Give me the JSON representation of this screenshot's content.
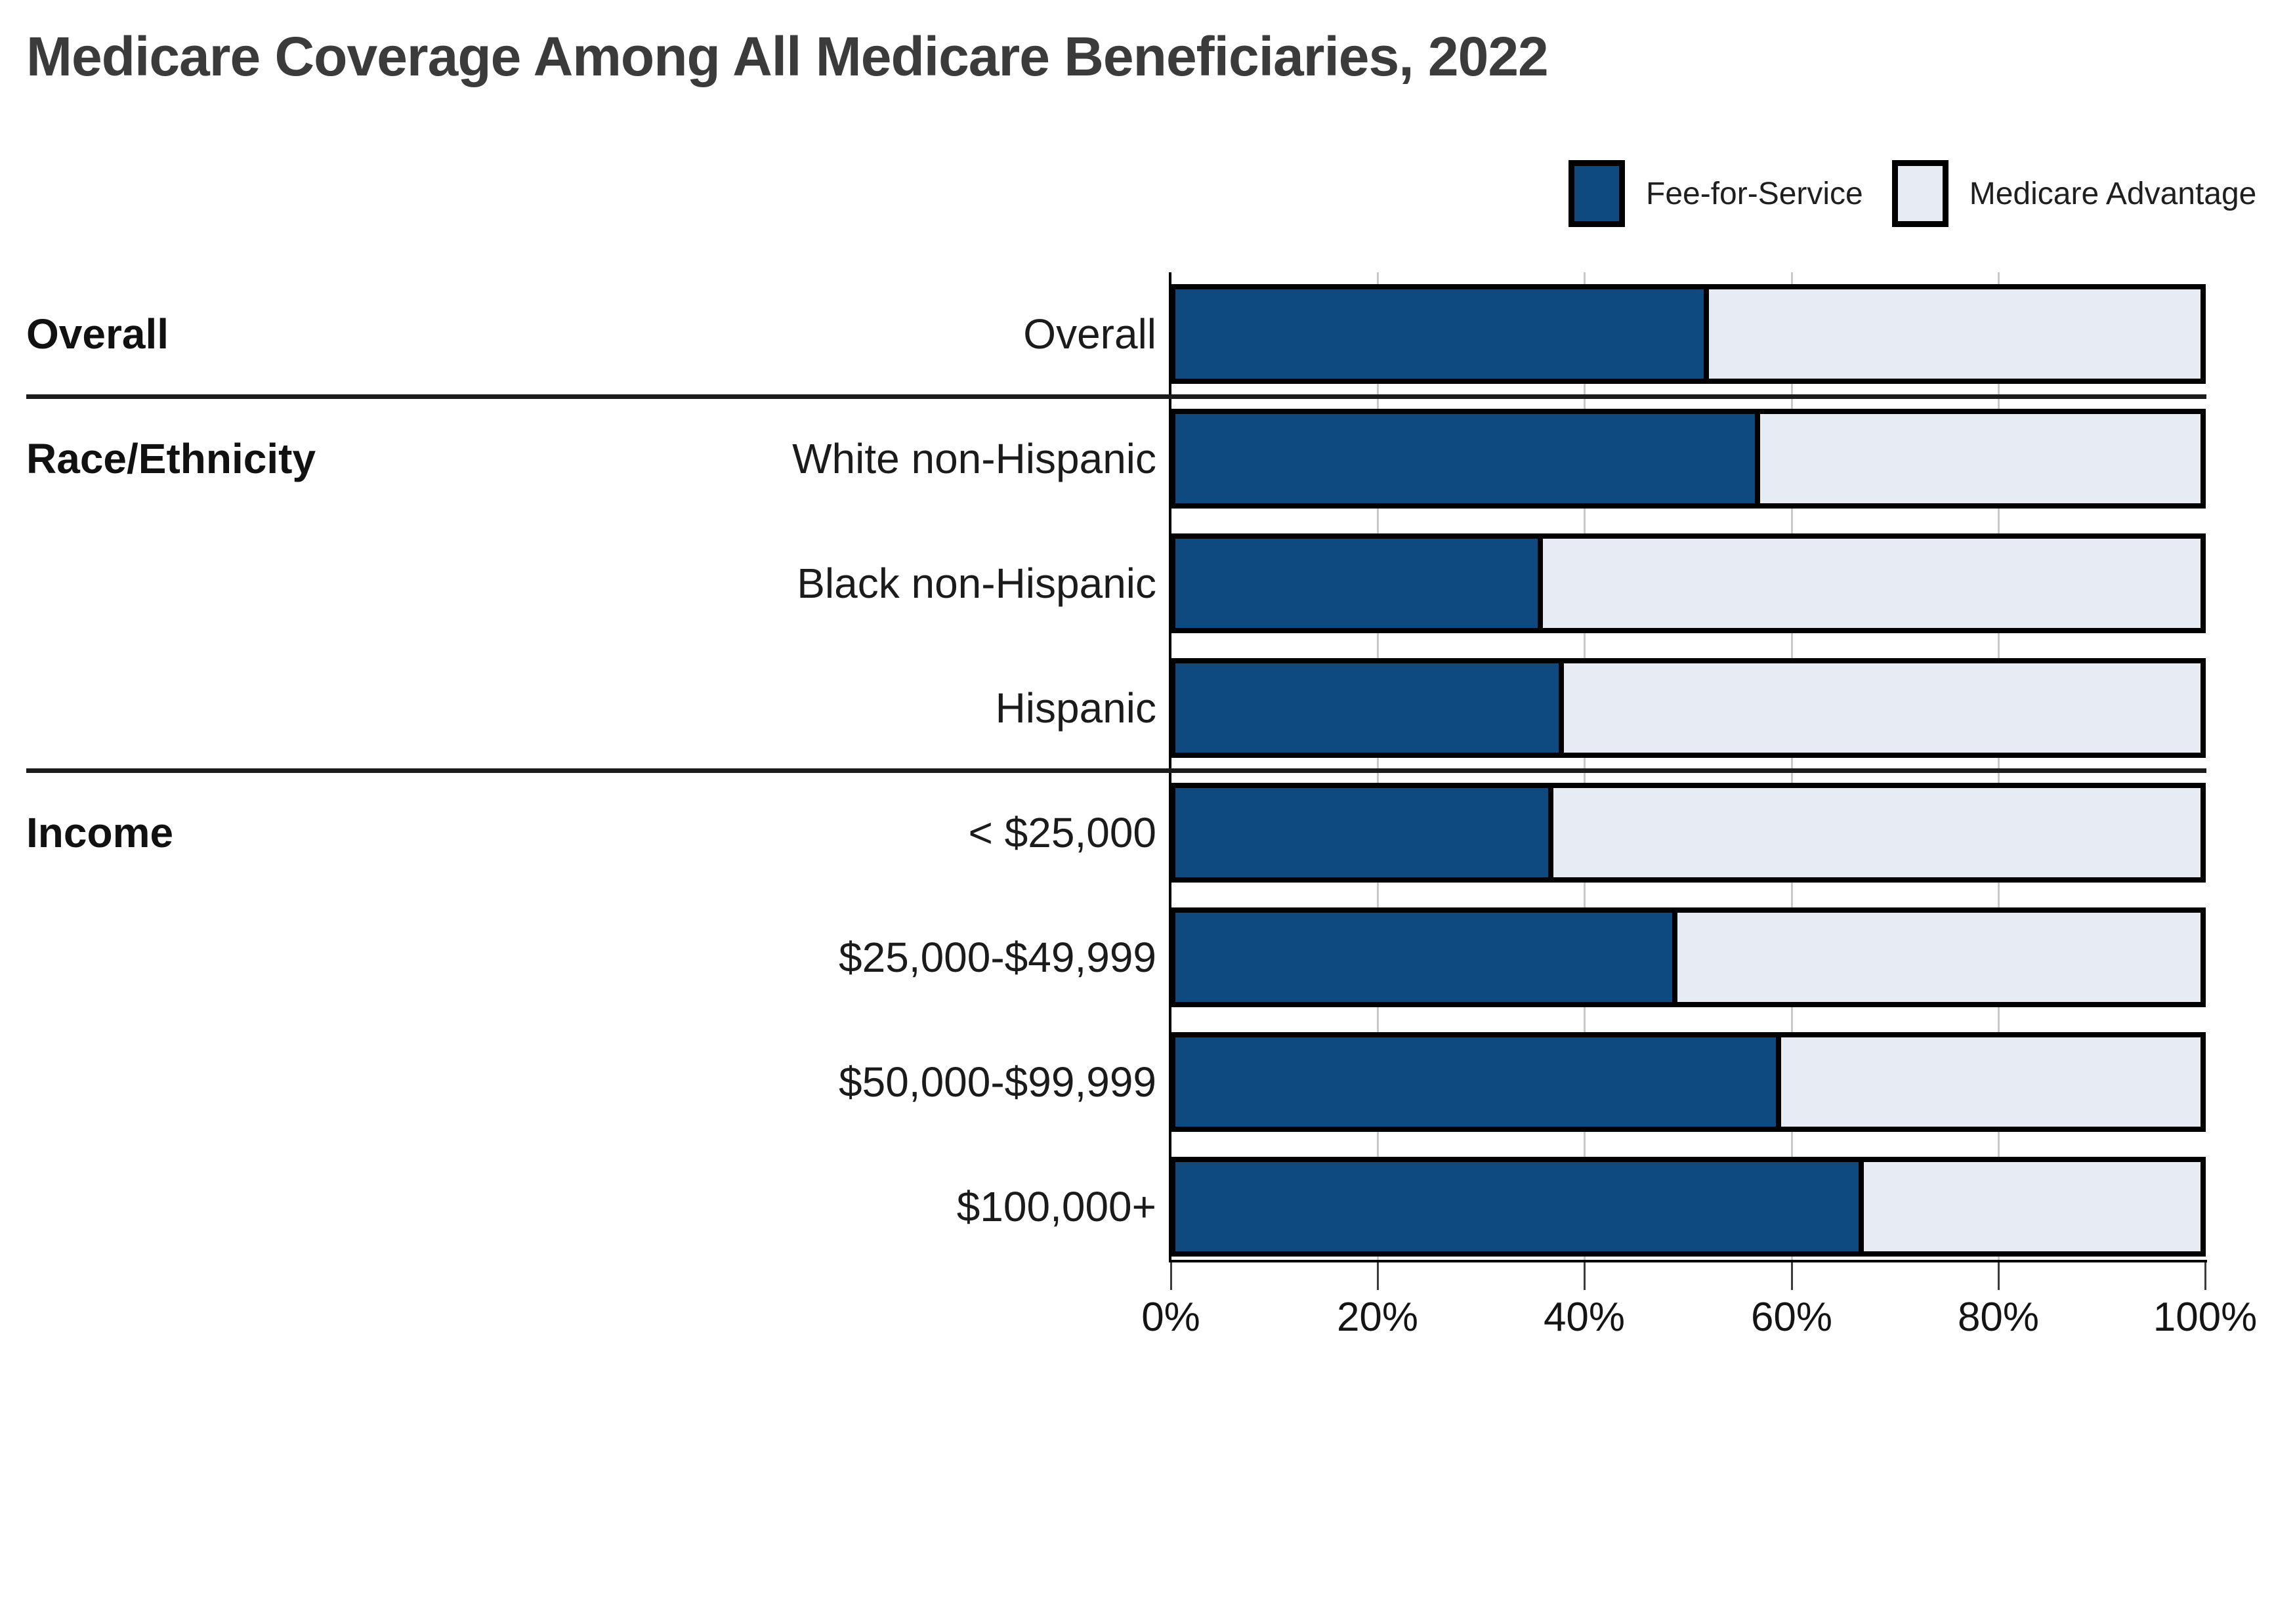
{
  "title": "Medicare Coverage Among All Medicare Beneficiaries, 2022",
  "colors": {
    "fee_for_service": "#0e4a7f",
    "medicare_advantage": "#e7ebf3",
    "bar_border": "#000000",
    "gridline": "#c9c9c9",
    "title_text": "#3b3b3b"
  },
  "chart_data": {
    "type": "bar",
    "stacked": true,
    "orientation": "horizontal",
    "title": "Medicare Coverage Among All Medicare Beneficiaries, 2022",
    "xlabel": "",
    "ylabel": "",
    "xlim": [
      0,
      100
    ],
    "x_ticks": [
      "0%",
      "20%",
      "40%",
      "60%",
      "80%",
      "100%"
    ],
    "x_tick_values": [
      0,
      20,
      40,
      60,
      80,
      100
    ],
    "grid": "vertical",
    "legend_position": "top-right",
    "categories": [
      "Overall",
      "White non-Hispanic",
      "Black non-Hispanic",
      "Hispanic",
      "< $25,000",
      "$25,000-$49,999",
      "$50,000-$99,999",
      "$100,000+"
    ],
    "sections": [
      {
        "label": "Overall",
        "start_row": 0
      },
      {
        "label": "Race/Ethnicity",
        "start_row": 1
      },
      {
        "label": "Income",
        "start_row": 4
      }
    ],
    "section_breaks_after_rows": [
      0,
      3
    ],
    "series": [
      {
        "name": "Fee-for-Service",
        "color": "#0e4a7f",
        "values": [
          52,
          57,
          36,
          38,
          37,
          49,
          59,
          67
        ]
      },
      {
        "name": "Medicare Advantage",
        "color": "#e7ebf3",
        "values": [
          48,
          43,
          64,
          62,
          63,
          51,
          41,
          33
        ]
      }
    ]
  }
}
